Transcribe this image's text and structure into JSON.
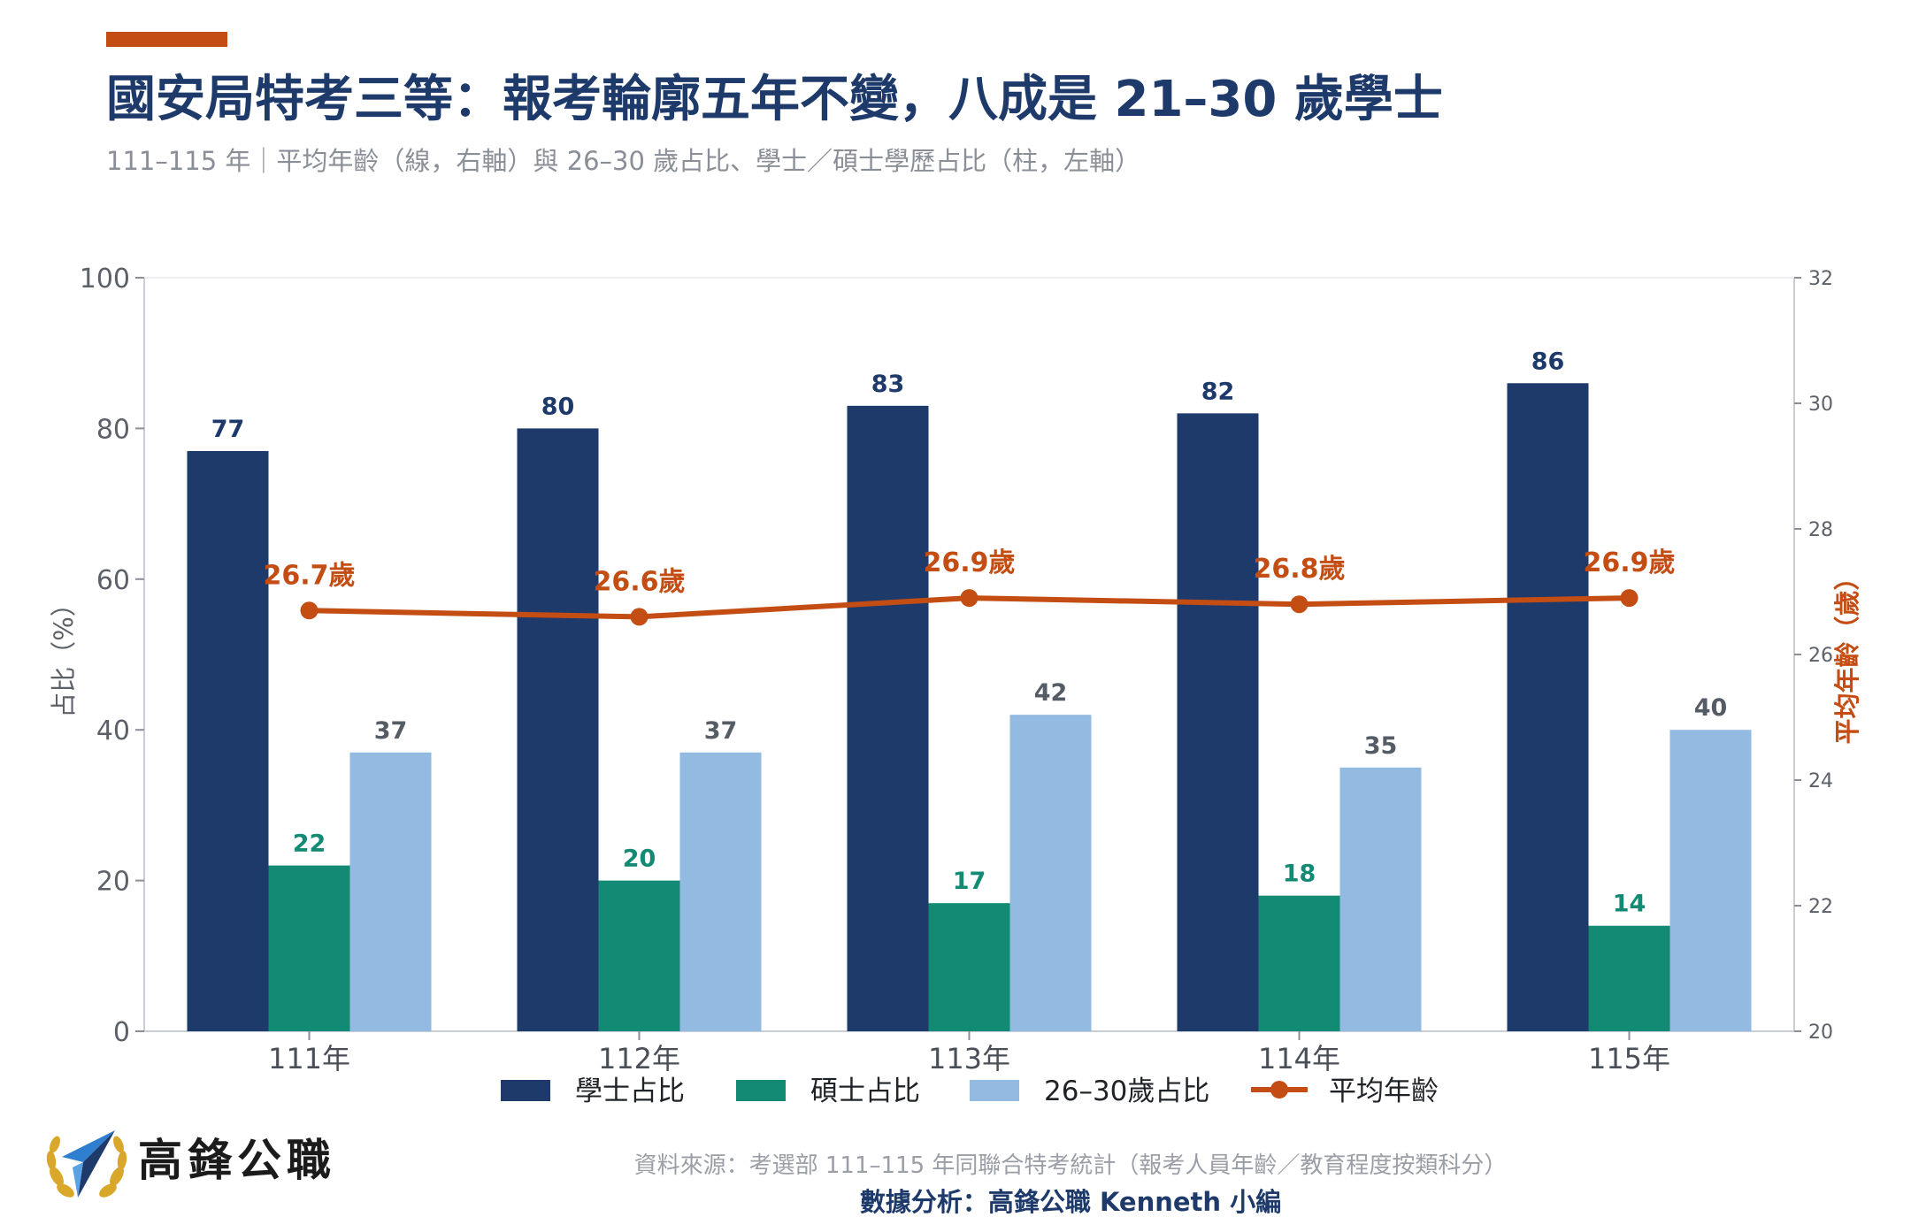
{
  "header": {
    "title": "國安局特考三等：報考輪廓五年不變，八成是 21–30 歲學士",
    "subtitle": "111–115 年｜平均年齡（線，右軸）與 26–30 歲占比、學士／碩士學歷占比（柱，左軸）"
  },
  "colors": {
    "accent": "#c44d14",
    "navy": "#1d3a6b",
    "teal": "#138a73",
    "light_blue": "#93bae0",
    "orange": "#c44d14"
  },
  "chart_data": {
    "type": "bar",
    "categories": [
      "111年",
      "112年",
      "113年",
      "114年",
      "115年"
    ],
    "series": [
      {
        "name": "學士占比",
        "values": [
          77,
          80,
          83,
          82,
          86
        ],
        "value_labels": [
          "77",
          "80",
          "83",
          "82",
          "86"
        ],
        "axis": "left"
      },
      {
        "name": "碩士占比",
        "values": [
          22,
          20,
          17,
          18,
          14
        ],
        "value_labels": [
          "22",
          "20",
          "17",
          "18",
          "14"
        ],
        "axis": "left"
      },
      {
        "name": "26–30歲占比",
        "values": [
          37,
          37,
          42,
          35,
          40
        ],
        "value_labels": [
          "37",
          "37",
          "42",
          "35",
          "40"
        ],
        "axis": "left"
      }
    ],
    "line_series": {
      "name": "平均年齡",
      "values": [
        26.7,
        26.6,
        26.9,
        26.8,
        26.9
      ],
      "value_labels": [
        "26.7歲",
        "26.6歲",
        "26.9歲",
        "26.8歲",
        "26.9歲"
      ],
      "axis": "right"
    },
    "ylabel": "占比（%）",
    "ylabel_right": "平均年齡（歲）",
    "ylim": [
      0,
      100
    ],
    "ylim_right": [
      20,
      32
    ],
    "yticks": [
      0,
      20,
      40,
      60,
      80,
      100
    ],
    "yticks_right": [
      20,
      22,
      24,
      26,
      28,
      30,
      32
    ],
    "grid": false,
    "legend_position": "bottom"
  },
  "footer": {
    "logo_text": "高鋒公職",
    "source": "資料來源：考選部 111–115 年同聯合特考統計（報考人員年齡／教育程度按類科分）",
    "analysis": "數據分析：高鋒公職 Kenneth 小編"
  }
}
